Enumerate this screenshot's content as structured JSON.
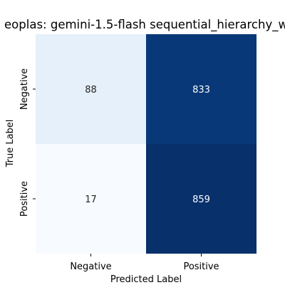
{
  "chart_data": {
    "type": "heatmap",
    "title": "eoplas: gemini-1.5-flash sequential_hierarchy_w",
    "xlabel": "Predicted Label",
    "ylabel": "True Label",
    "x_categories": [
      "Negative",
      "Positive"
    ],
    "y_categories": [
      "Negative",
      "Positive"
    ],
    "values": [
      [
        88,
        833
      ],
      [
        17,
        859
      ]
    ],
    "colormap": "Blues",
    "vmin": 17,
    "vmax": 859,
    "colorbar": false,
    "grid": false,
    "colors": {
      "low": "#f7fbff",
      "high": "#08306b",
      "light_text": "#ffffff",
      "dark_text": "#262626"
    }
  }
}
